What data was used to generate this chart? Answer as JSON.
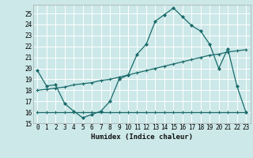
{
  "xlabel": "Humidex (Indice chaleur)",
  "bg_color": "#cce8e8",
  "grid_color": "#ffffff",
  "line_color": "#1a6b6b",
  "xlim": [
    -0.5,
    23.5
  ],
  "ylim": [
    15,
    25.8
  ],
  "xticks": [
    0,
    1,
    2,
    3,
    4,
    5,
    6,
    7,
    8,
    9,
    10,
    11,
    12,
    13,
    14,
    15,
    16,
    17,
    18,
    19,
    20,
    21,
    22,
    23
  ],
  "yticks": [
    15,
    16,
    17,
    18,
    19,
    20,
    21,
    22,
    23,
    24,
    25
  ],
  "series1_x": [
    0,
    1,
    2,
    3,
    4,
    5,
    6,
    7,
    8,
    9,
    10,
    11,
    12,
    13,
    14,
    15,
    16,
    17,
    18,
    19,
    20,
    21,
    22,
    23
  ],
  "series1_y": [
    19.8,
    18.4,
    18.5,
    16.8,
    16.1,
    15.5,
    15.8,
    16.1,
    17.0,
    19.0,
    19.4,
    21.3,
    22.2,
    24.3,
    24.9,
    25.5,
    24.7,
    23.9,
    23.4,
    22.2,
    20.0,
    21.8,
    18.4,
    16.0
  ],
  "series2_x": [
    0,
    1,
    2,
    3,
    4,
    5,
    6,
    7,
    8,
    9,
    10,
    11,
    12,
    13,
    14,
    15,
    16,
    17,
    18,
    19,
    20,
    21,
    22,
    23
  ],
  "series2_y": [
    16.0,
    16.0,
    16.0,
    16.0,
    16.0,
    16.0,
    16.0,
    16.0,
    16.0,
    16.0,
    16.0,
    16.0,
    16.0,
    16.0,
    16.0,
    16.0,
    16.0,
    16.0,
    16.0,
    16.0,
    16.0,
    16.0,
    16.0,
    16.0
  ],
  "series3_x": [
    0,
    1,
    2,
    3,
    4,
    5,
    6,
    7,
    8,
    9,
    10,
    11,
    12,
    13,
    14,
    15,
    16,
    17,
    18,
    19,
    20,
    21,
    22,
    23
  ],
  "series3_y": [
    18.0,
    18.1,
    18.2,
    18.3,
    18.5,
    18.6,
    18.7,
    18.9,
    19.0,
    19.2,
    19.4,
    19.6,
    19.8,
    20.0,
    20.2,
    20.4,
    20.6,
    20.8,
    21.0,
    21.2,
    21.3,
    21.5,
    21.6,
    21.7
  ]
}
